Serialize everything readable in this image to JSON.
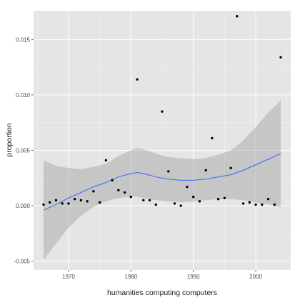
{
  "chart_data": {
    "type": "scatter",
    "title": "",
    "xlabel": "humanities computing computers",
    "ylabel": "proportion",
    "xlim": [
      1964.4,
      2005.6
    ],
    "ylim": [
      -0.0058,
      0.0176
    ],
    "x_ticks": [
      1970,
      1980,
      1990,
      2000
    ],
    "x_tick_labels": [
      "1970",
      "1980",
      "1990",
      "2000"
    ],
    "y_ticks": [
      -0.005,
      0.0,
      0.005,
      0.01,
      0.015
    ],
    "y_tick_labels": [
      "-0.005",
      "0.000",
      "0.005",
      "0.010",
      "0.015"
    ],
    "grid": true,
    "legend": "none",
    "colors": {
      "panel_background": "#e5e5e5",
      "grid_major": "#ffffff",
      "grid_minor": "#f2f2f2",
      "points": "#000000",
      "smooth_line": "#3366ff",
      "confidence_band": "#999999"
    },
    "points": [
      {
        "x": 1966,
        "y": 0.0001
      },
      {
        "x": 1967,
        "y": 0.0003
      },
      {
        "x": 1968,
        "y": 0.0005
      },
      {
        "x": 1969,
        "y": 0.0002
      },
      {
        "x": 1970,
        "y": 0.0002
      },
      {
        "x": 1971,
        "y": 0.0006
      },
      {
        "x": 1972,
        "y": 0.0005
      },
      {
        "x": 1973,
        "y": 0.0004
      },
      {
        "x": 1974,
        "y": 0.0013
      },
      {
        "x": 1975,
        "y": 0.0003
      },
      {
        "x": 1976,
        "y": 0.0041
      },
      {
        "x": 1977,
        "y": 0.0023
      },
      {
        "x": 1978,
        "y": 0.0014
      },
      {
        "x": 1979,
        "y": 0.0012
      },
      {
        "x": 1980,
        "y": 0.0008
      },
      {
        "x": 1981,
        "y": 0.0114
      },
      {
        "x": 1982,
        "y": 0.0005
      },
      {
        "x": 1983,
        "y": 0.0005
      },
      {
        "x": 1984,
        "y": 0.0001
      },
      {
        "x": 1985,
        "y": 0.0085
      },
      {
        "x": 1986,
        "y": 0.0031
      },
      {
        "x": 1987,
        "y": 0.0002
      },
      {
        "x": 1988,
        "y": 0.0
      },
      {
        "x": 1989,
        "y": 0.0017
      },
      {
        "x": 1990,
        "y": 0.0008
      },
      {
        "x": 1991,
        "y": 0.0004
      },
      {
        "x": 1992,
        "y": 0.0032
      },
      {
        "x": 1993,
        "y": 0.0061
      },
      {
        "x": 1994,
        "y": 0.0006
      },
      {
        "x": 1995,
        "y": 0.0007
      },
      {
        "x": 1996,
        "y": 0.0034
      },
      {
        "x": 1997,
        "y": 0.0171
      },
      {
        "x": 1998,
        "y": 0.0002
      },
      {
        "x": 1999,
        "y": 0.0003
      },
      {
        "x": 2000,
        "y": 0.0001
      },
      {
        "x": 2001,
        "y": 0.0001
      },
      {
        "x": 2002,
        "y": 0.0006
      },
      {
        "x": 2003,
        "y": 0.0001
      },
      {
        "x": 2004,
        "y": 0.0134
      }
    ],
    "smooth": {
      "x": [
        1966,
        1968,
        1970,
        1972,
        1974,
        1976,
        1978,
        1980,
        1981,
        1982,
        1984,
        1986,
        1988,
        1990,
        1992,
        1994,
        1996,
        1998,
        2000,
        2002,
        2004
      ],
      "y": [
        -0.0004,
        0.0001,
        0.0007,
        0.0012,
        0.0017,
        0.0021,
        0.0026,
        0.0029,
        0.003,
        0.0029,
        0.0026,
        0.0024,
        0.0023,
        0.0023,
        0.0024,
        0.0026,
        0.0028,
        0.0032,
        0.0037,
        0.0042,
        0.0047
      ],
      "lower": [
        -0.0049,
        -0.0034,
        -0.002,
        -0.0009,
        -0.0001,
        0.0004,
        0.0007,
        0.0008,
        0.0008,
        0.0007,
        0.0005,
        0.0004,
        0.0003,
        0.0004,
        0.0005,
        0.0006,
        0.0006,
        0.0005,
        0.0003,
        0.0001,
        -0.0001
      ],
      "upper": [
        0.0041,
        0.0036,
        0.0034,
        0.0033,
        0.0035,
        0.0038,
        0.0045,
        0.005,
        0.0052,
        0.0051,
        0.0047,
        0.0044,
        0.0043,
        0.0042,
        0.0043,
        0.0046,
        0.005,
        0.0059,
        0.0071,
        0.0084,
        0.0095
      ]
    }
  }
}
